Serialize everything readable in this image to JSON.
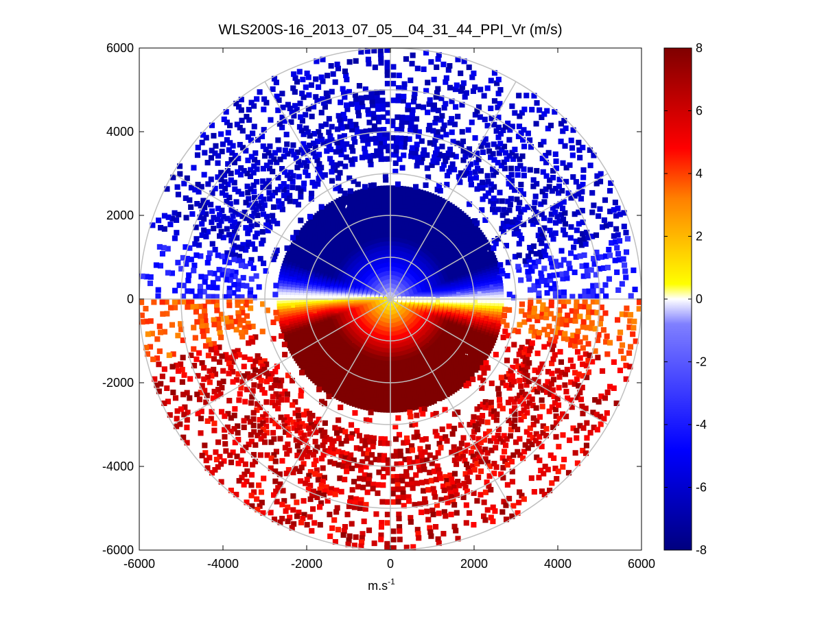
{
  "chart_data": {
    "type": "heatmap",
    "subtype": "polar-ppi",
    "title": "WLS200S-16_2013_07_05__04_31_44_PPI_Vr (m/s)",
    "xlabel": "m.s",
    "xlabel_sup": "-1",
    "ylabel": "",
    "xlim": [
      -6000,
      6000
    ],
    "ylim": [
      -6000,
      6000
    ],
    "xticks": [
      "-6000",
      "-4000",
      "-2000",
      "0",
      "2000",
      "4000",
      "6000"
    ],
    "xtick_values": [
      -6000,
      -4000,
      -2000,
      0,
      2000,
      4000,
      6000
    ],
    "yticks": [
      "6000",
      "4000",
      "2000",
      "0",
      "-2000",
      "-4000",
      "-6000"
    ],
    "ytick_values": [
      6000,
      4000,
      2000,
      0,
      -2000,
      -4000,
      -6000
    ],
    "range_rings": [
      1000,
      2000,
      3000,
      4000,
      5000,
      6000
    ],
    "spokes_deg": [
      0,
      30,
      60,
      90,
      120,
      150,
      180,
      210,
      240,
      270,
      300,
      330
    ],
    "max_range": 6000,
    "colorbar": {
      "min": -8,
      "max": 8,
      "ticks": [
        "8",
        "6",
        "4",
        "2",
        "0",
        "-2",
        "-4",
        "-6",
        "-8"
      ],
      "tick_values": [
        8,
        6,
        4,
        2,
        0,
        -2,
        -4,
        -6,
        -8
      ],
      "colormap": [
        "#00007f",
        "#0000ff",
        "#ddddff",
        "#ffffff",
        "#ffff00",
        "#ff8000",
        "#ff0000",
        "#7f0000"
      ]
    },
    "field": {
      "description": "radial velocity (m/s); negative north half, positive south half",
      "north_value": -7,
      "south_value": 7.5,
      "near_center_gradient": true
    }
  }
}
